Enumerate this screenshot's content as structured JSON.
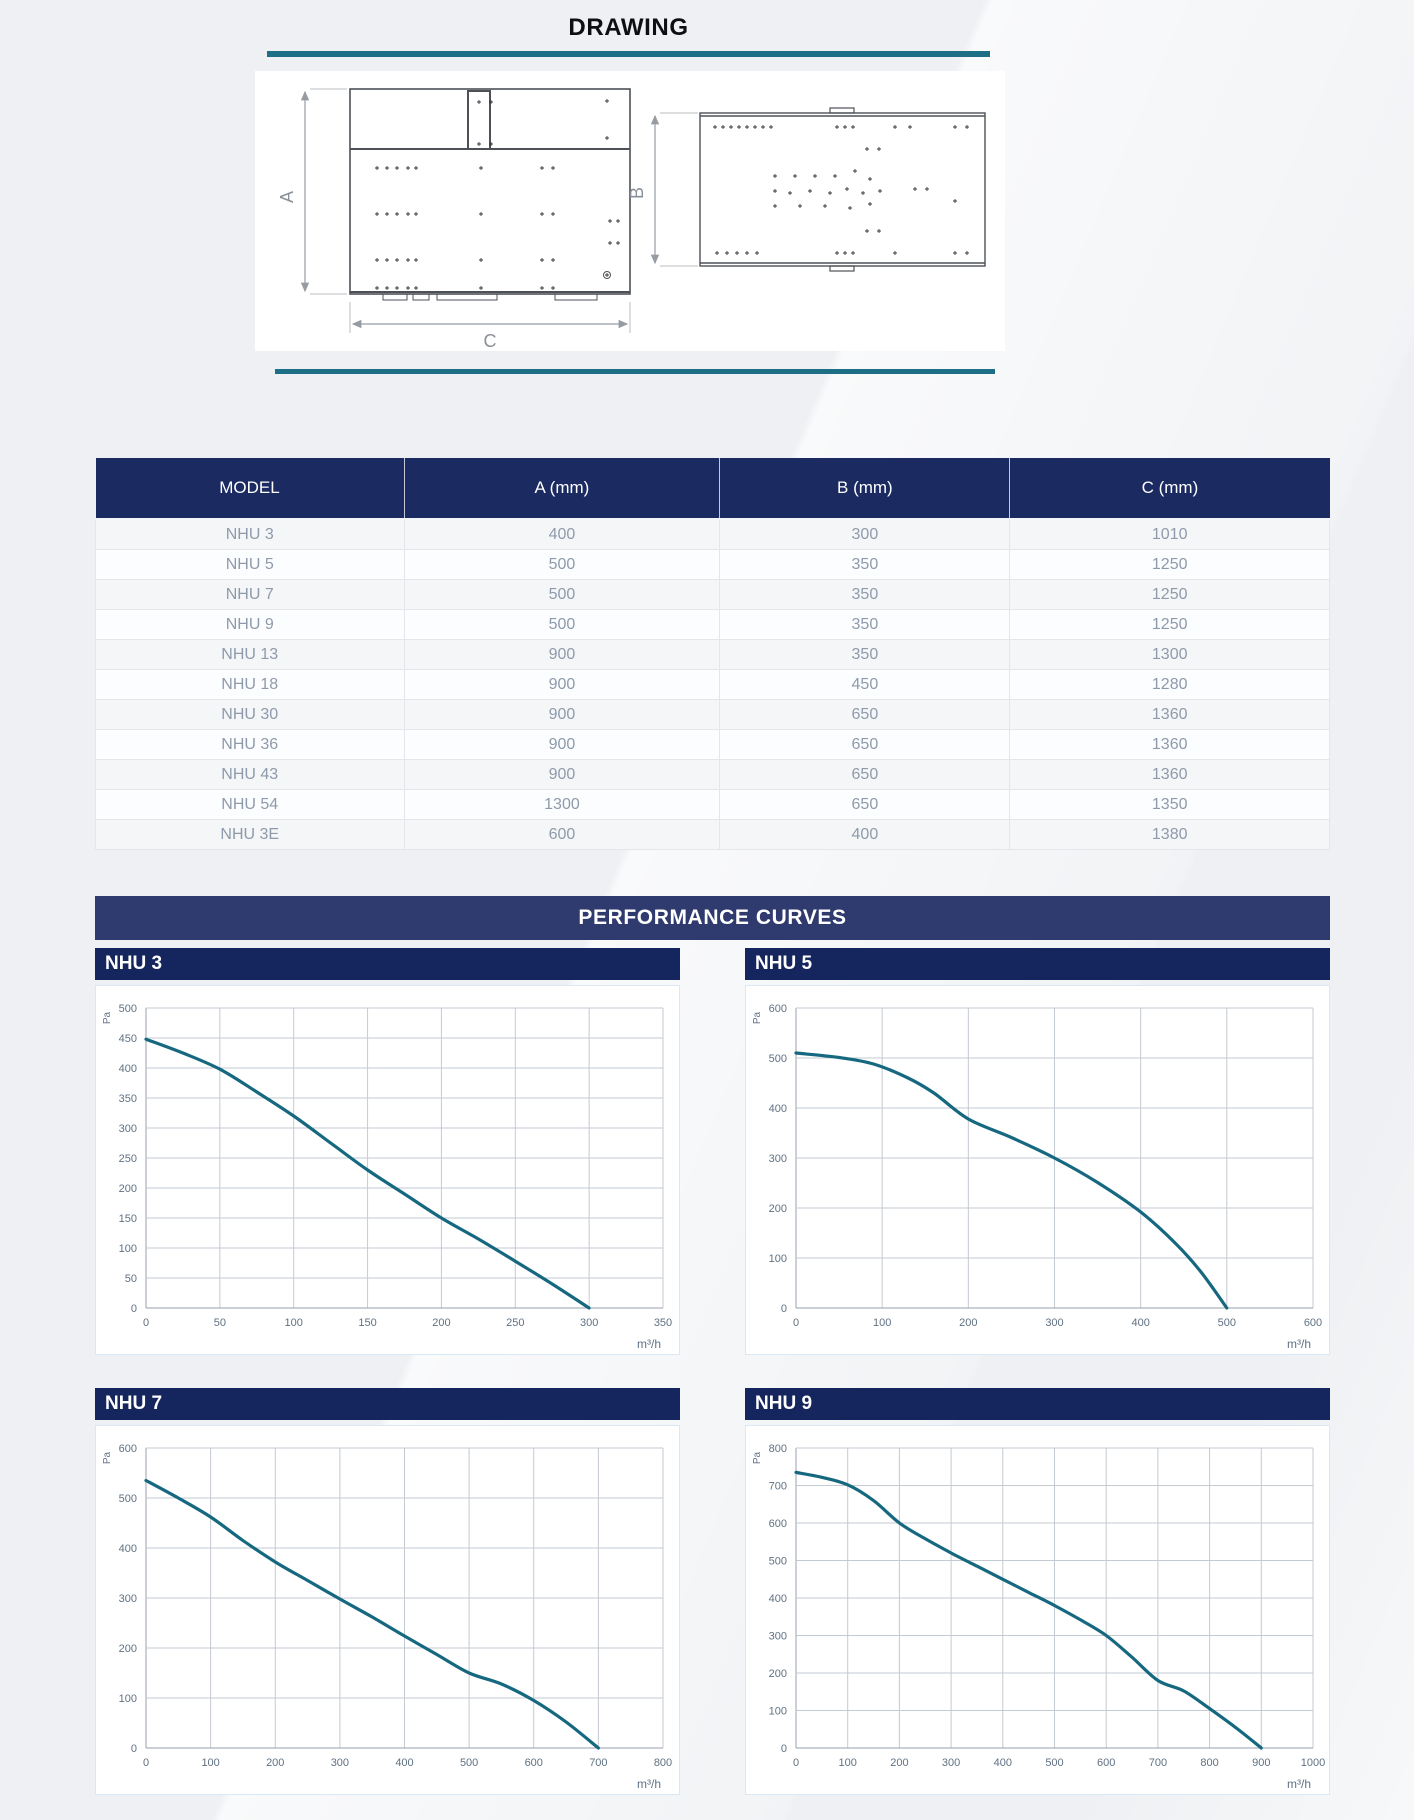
{
  "header": {
    "title": "DRAWING"
  },
  "drawing": {
    "dim_a_label": "A",
    "dim_b_label": "B",
    "dim_c_label": "C"
  },
  "table": {
    "headers": [
      "MODEL",
      "A (mm)",
      "B (mm)",
      "C (mm)"
    ],
    "rows": [
      [
        "NHU 3",
        "400",
        "300",
        "1010"
      ],
      [
        "NHU 5",
        "500",
        "350",
        "1250"
      ],
      [
        "NHU 7",
        "500",
        "350",
        "1250"
      ],
      [
        "NHU 9",
        "500",
        "350",
        "1250"
      ],
      [
        "NHU 13",
        "900",
        "350",
        "1300"
      ],
      [
        "NHU 18",
        "900",
        "450",
        "1280"
      ],
      [
        "NHU 30",
        "900",
        "650",
        "1360"
      ],
      [
        "NHU 36",
        "900",
        "650",
        "1360"
      ],
      [
        "NHU 43",
        "900",
        "650",
        "1360"
      ],
      [
        "NHU 54",
        "1300",
        "650",
        "1350"
      ],
      [
        "NHU 3E",
        "600",
        "400",
        "1380"
      ]
    ]
  },
  "performance": {
    "banner": "PERFORMANCE CURVES"
  },
  "chart_data": [
    {
      "type": "line",
      "title": "NHU 3",
      "xlabel": "m³/h",
      "ylabel": "Pa",
      "xlim": [
        0,
        350
      ],
      "xstep": 50,
      "ylim": [
        0,
        500
      ],
      "ystep": 50,
      "grid": true,
      "points": [
        [
          0,
          448
        ],
        [
          25,
          425
        ],
        [
          50,
          398
        ],
        [
          75,
          360
        ],
        [
          100,
          320
        ],
        [
          125,
          275
        ],
        [
          150,
          230
        ],
        [
          175,
          190
        ],
        [
          200,
          150
        ],
        [
          225,
          115
        ],
        [
          250,
          78
        ],
        [
          275,
          40
        ],
        [
          300,
          0
        ]
      ]
    },
    {
      "type": "line",
      "title": "NHU 5",
      "xlabel": "m³/h",
      "ylabel": "Pa",
      "xlim": [
        0,
        600
      ],
      "xstep": 100,
      "ylim": [
        0,
        600
      ],
      "ystep": 100,
      "grid": true,
      "points": [
        [
          0,
          510
        ],
        [
          50,
          501
        ],
        [
          90,
          488
        ],
        [
          130,
          460
        ],
        [
          160,
          430
        ],
        [
          200,
          378
        ],
        [
          250,
          341
        ],
        [
          300,
          300
        ],
        [
          350,
          251
        ],
        [
          400,
          192
        ],
        [
          440,
          130
        ],
        [
          470,
          72
        ],
        [
          500,
          0
        ]
      ]
    },
    {
      "type": "line",
      "title": "NHU 7",
      "xlabel": "m³/h",
      "ylabel": "Pa",
      "xlim": [
        0,
        800
      ],
      "xstep": 100,
      "ylim": [
        0,
        600
      ],
      "ystep": 100,
      "grid": true,
      "points": [
        [
          0,
          535
        ],
        [
          50,
          500
        ],
        [
          100,
          462
        ],
        [
          150,
          415
        ],
        [
          200,
          372
        ],
        [
          250,
          335
        ],
        [
          300,
          298
        ],
        [
          350,
          262
        ],
        [
          400,
          224
        ],
        [
          450,
          187
        ],
        [
          500,
          150
        ],
        [
          550,
          128
        ],
        [
          600,
          95
        ],
        [
          650,
          52
        ],
        [
          700,
          0
        ]
      ]
    },
    {
      "type": "line",
      "title": "NHU 9",
      "xlabel": "m³/h",
      "ylabel": "Pa",
      "xlim": [
        0,
        1000
      ],
      "xstep": 100,
      "ylim": [
        0,
        800
      ],
      "ystep": 100,
      "grid": true,
      "points": [
        [
          0,
          735
        ],
        [
          50,
          722
        ],
        [
          100,
          702
        ],
        [
          150,
          660
        ],
        [
          200,
          600
        ],
        [
          250,
          558
        ],
        [
          300,
          520
        ],
        [
          350,
          485
        ],
        [
          400,
          450
        ],
        [
          450,
          415
        ],
        [
          500,
          380
        ],
        [
          550,
          342
        ],
        [
          600,
          300
        ],
        [
          650,
          242
        ],
        [
          700,
          180
        ],
        [
          750,
          152
        ],
        [
          800,
          105
        ],
        [
          850,
          55
        ],
        [
          900,
          0
        ]
      ]
    }
  ],
  "colors": {
    "navy_dark": "#15265f",
    "table_header_navy": "#1b2a61",
    "banner_navy": "#2f3a6e",
    "teal_rule": "#1c6f85",
    "curve": "#15687f",
    "table_text": "#8e9aab",
    "tick_text": "#5f7183",
    "grid": "#c3cad1",
    "axis": "#98a2ac",
    "panel_border": "#d9e8f3"
  }
}
